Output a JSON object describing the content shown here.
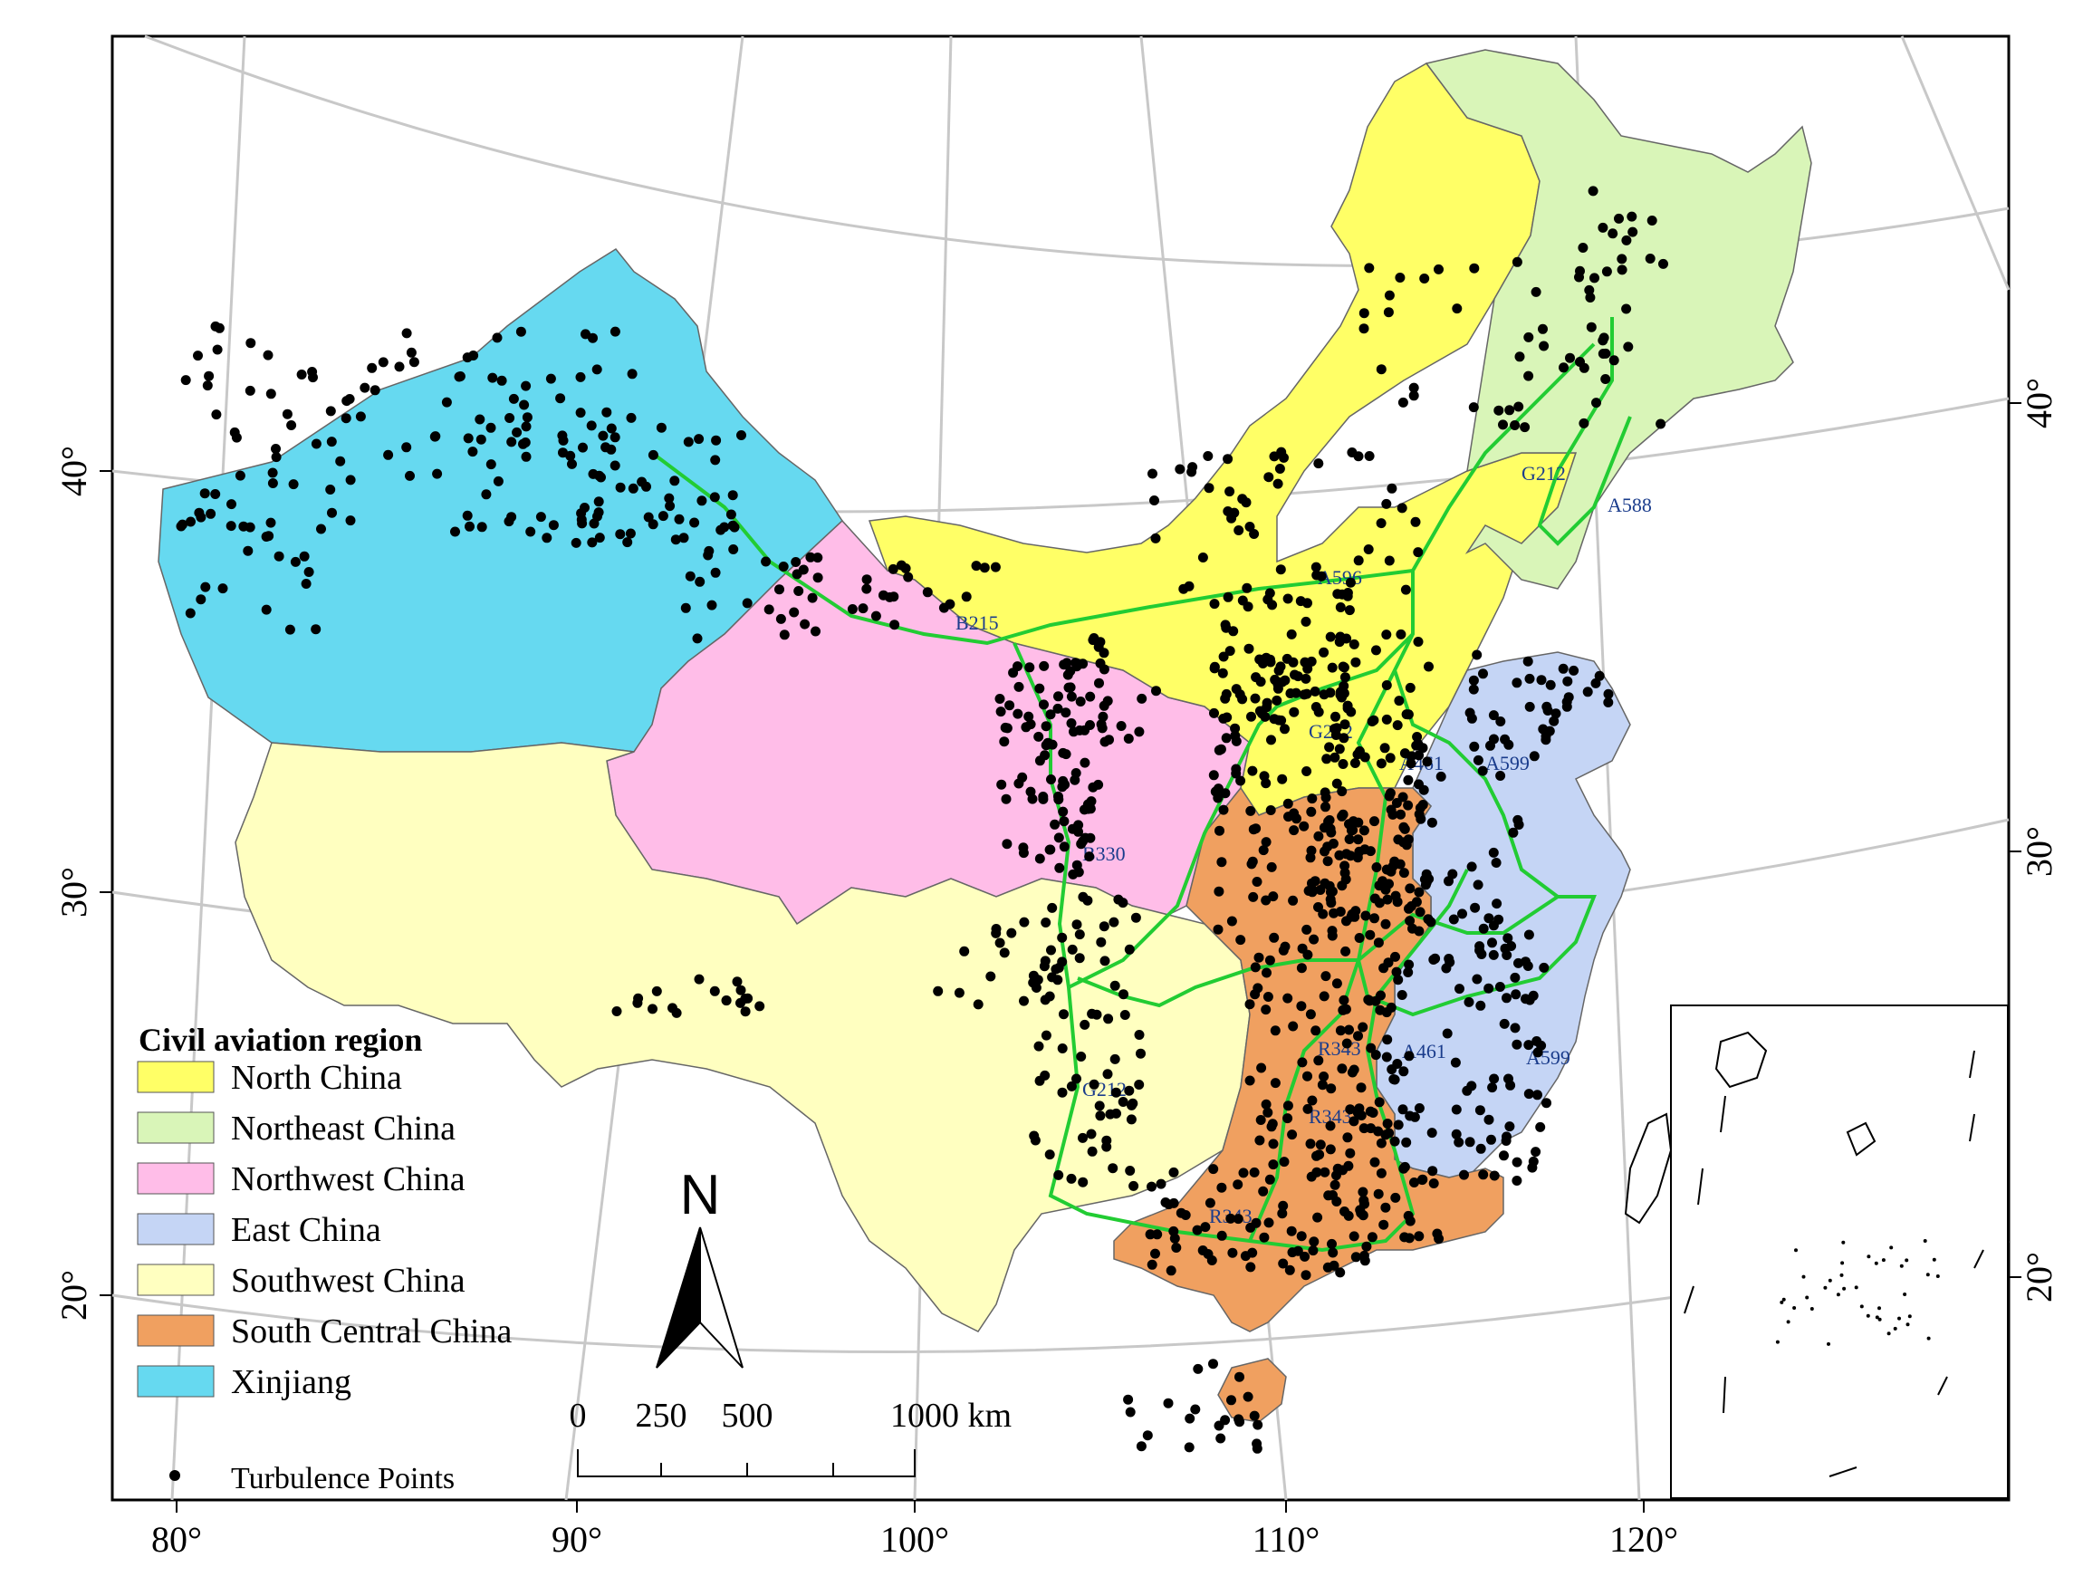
{
  "colors": {
    "north_china": "#ffff66",
    "northeast_china": "#d9f5b8",
    "northwest_china": "#ffbde8",
    "east_china": "#c5d5f5",
    "southwest_china": "#ffffc0",
    "south_central_china": "#f0a060",
    "xinjiang": "#66d9f0",
    "route": "#22cc33",
    "points": "#000000",
    "graticule": "#c8c8c8"
  },
  "axes": {
    "bottom_ticks": [
      "80°",
      "90°",
      "100°",
      "110°",
      "120°"
    ],
    "left_ticks": [
      "40°",
      "30°",
      "20°"
    ],
    "right_ticks": [
      "40°",
      "30°",
      "20°"
    ]
  },
  "legend": {
    "title": "Civil aviation region",
    "items": [
      {
        "label": "North China",
        "color_key": "north_china"
      },
      {
        "label": "Northeast China",
        "color_key": "northeast_china"
      },
      {
        "label": "Northwest China",
        "color_key": "northwest_china"
      },
      {
        "label": "East China",
        "color_key": "east_china"
      },
      {
        "label": "Southwest China",
        "color_key": "southwest_china"
      },
      {
        "label": "South Central China",
        "color_key": "south_central_china"
      },
      {
        "label": "Xinjiang",
        "color_key": "xinjiang"
      }
    ],
    "points_label": "Turbulence Points"
  },
  "north_arrow": {
    "label": "N"
  },
  "scale_bar": {
    "labels": [
      "0",
      "250",
      "500",
      "1000 km"
    ]
  },
  "route_labels": [
    "G212",
    "A588",
    "A596",
    "B215",
    "G212",
    "A461",
    "A599",
    "B330",
    "R343",
    "A461",
    "A599",
    "R343",
    "G212",
    "R343"
  ]
}
